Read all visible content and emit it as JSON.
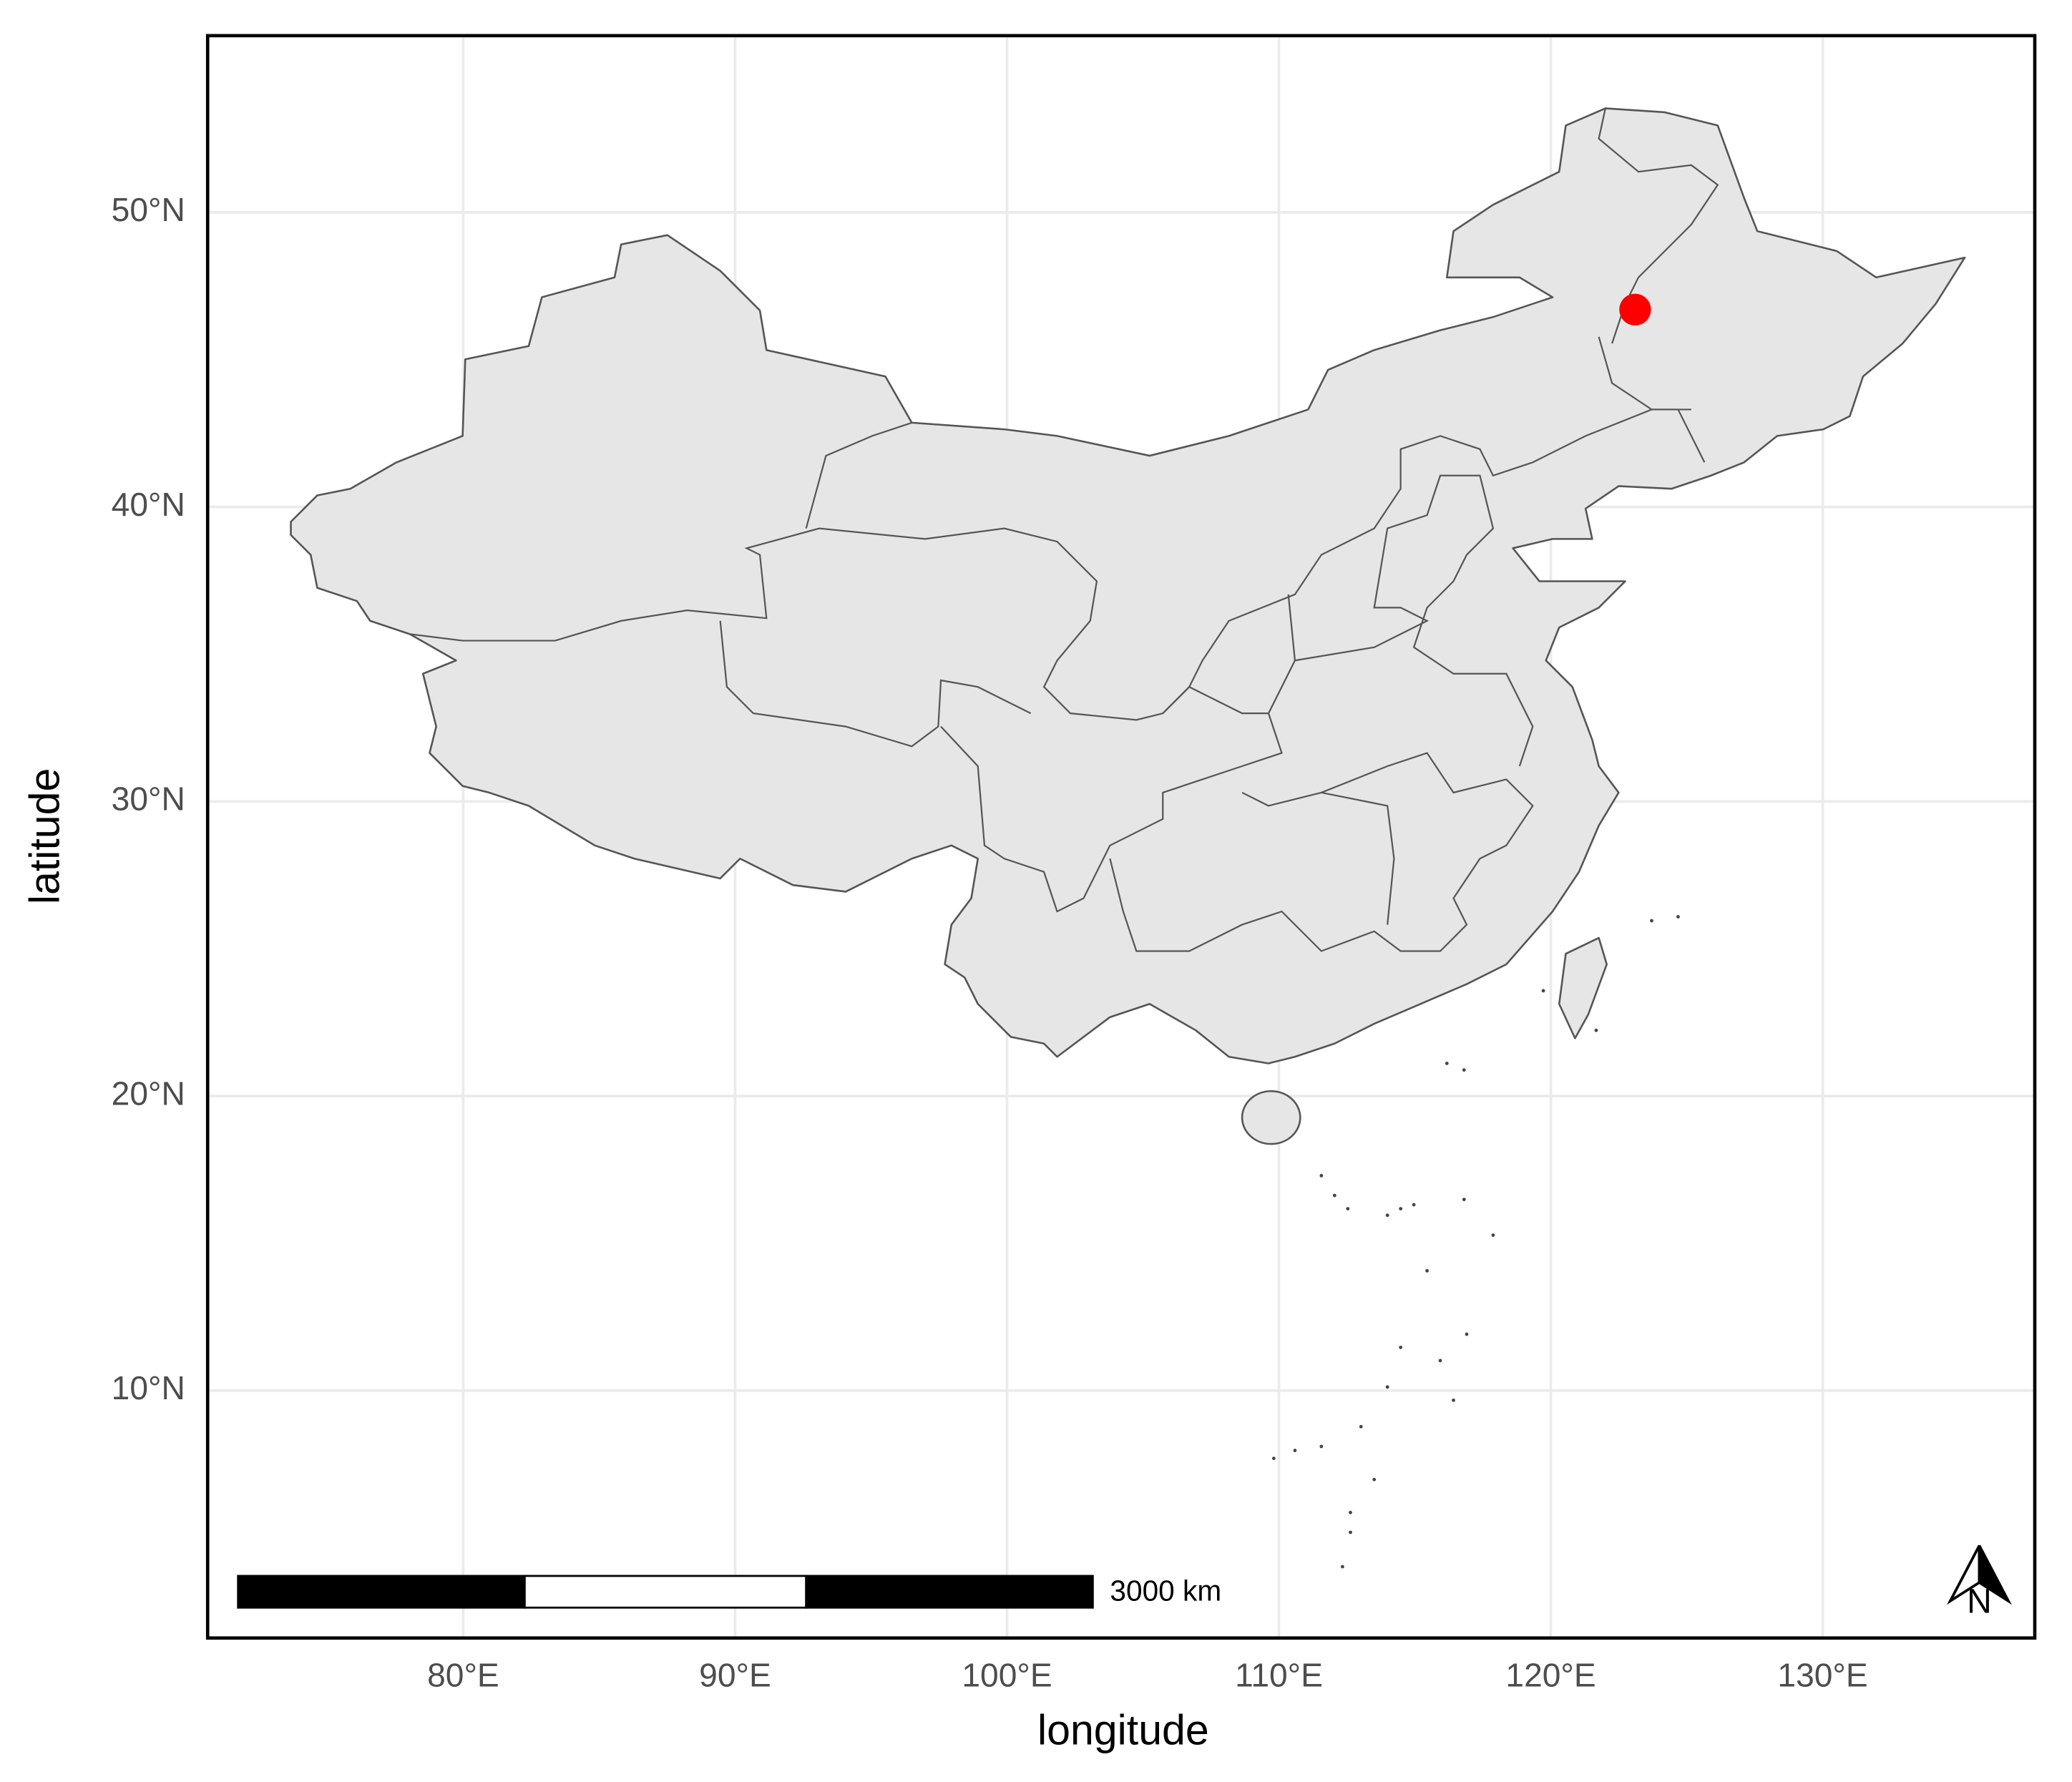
{
  "chart_data": {
    "type": "map",
    "xlabel": "longitude",
    "ylabel": "latitude",
    "xlim": [
      70.6,
      137.8
    ],
    "ylim": [
      1.6,
      56.0
    ],
    "xticks": [
      {
        "value": 80,
        "label": "80°E"
      },
      {
        "value": 90,
        "label": "90°E"
      },
      {
        "value": 100,
        "label": "100°E"
      },
      {
        "value": 110,
        "label": "110°E"
      },
      {
        "value": 120,
        "label": "120°E"
      },
      {
        "value": 130,
        "label": "130°E"
      }
    ],
    "yticks": [
      {
        "value": 10,
        "label": "10°N"
      },
      {
        "value": 20,
        "label": "20°N"
      },
      {
        "value": 30,
        "label": "30°N"
      },
      {
        "value": 40,
        "label": "40°N"
      },
      {
        "value": 50,
        "label": "50°N"
      }
    ],
    "grid": true,
    "points": {
      "x": [
        123.1
      ],
      "y": [
        46.7
      ],
      "color": "#ff0000"
    },
    "scale_bar": "3000 km",
    "north_label": "N"
  }
}
